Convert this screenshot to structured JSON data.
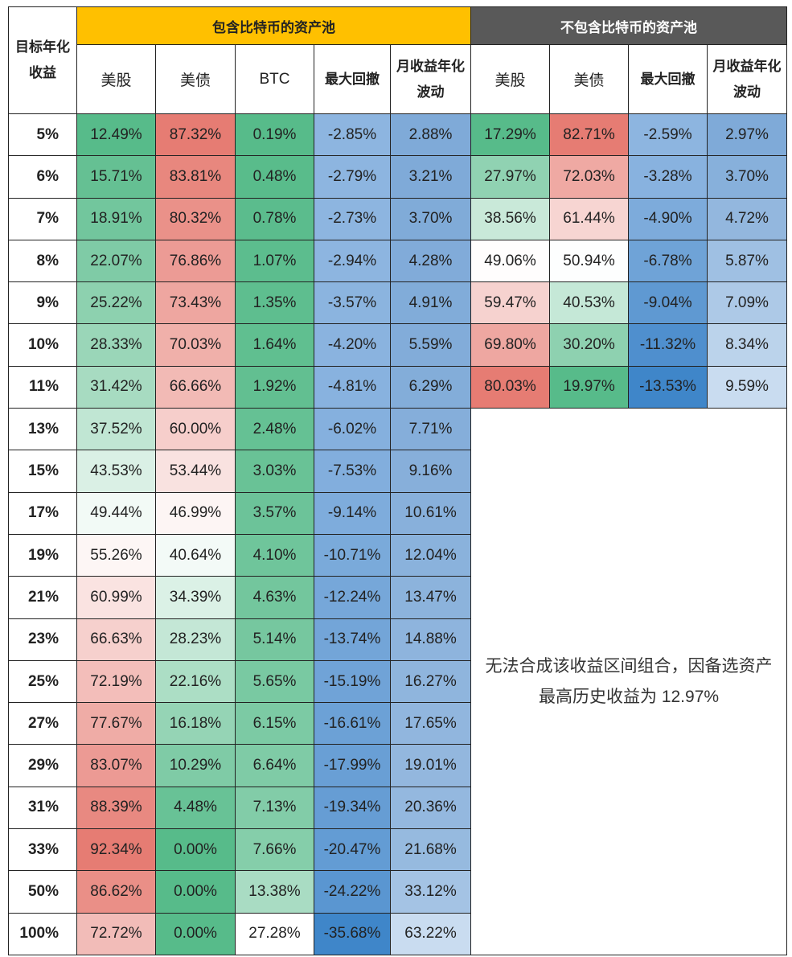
{
  "headers": {
    "target": "目标年化收益",
    "group_with_btc": "包含比特币的资产池",
    "group_without_btc": "不包含比特币的资产池",
    "with_cols": [
      "美股",
      "美债",
      "BTC",
      "最大回撤",
      "月收益年化波动"
    ],
    "without_cols": [
      "美股",
      "美债",
      "最大回撤",
      "月收益年化波动"
    ]
  },
  "colors": {
    "header_with": "#FFC000",
    "header_without": "#595959",
    "red": "#E67C73",
    "green": "#57BB8A",
    "blue": "#3F86C9"
  },
  "rows": [
    {
      "target": "5%",
      "w": [
        "12.49%",
        "87.32%",
        "0.19%",
        "-2.85%",
        "2.88%"
      ],
      "o": [
        "17.29%",
        "82.71%",
        "-2.59%",
        "2.97%"
      ]
    },
    {
      "target": "6%",
      "w": [
        "15.71%",
        "83.81%",
        "0.48%",
        "-2.79%",
        "3.21%"
      ],
      "o": [
        "27.97%",
        "72.03%",
        "-3.28%",
        "3.70%"
      ]
    },
    {
      "target": "7%",
      "w": [
        "18.91%",
        "80.32%",
        "0.78%",
        "-2.73%",
        "3.70%"
      ],
      "o": [
        "38.56%",
        "61.44%",
        "-4.90%",
        "4.72%"
      ]
    },
    {
      "target": "8%",
      "w": [
        "22.07%",
        "76.86%",
        "1.07%",
        "-2.94%",
        "4.28%"
      ],
      "o": [
        "49.06%",
        "50.94%",
        "-6.78%",
        "5.87%"
      ]
    },
    {
      "target": "9%",
      "w": [
        "25.22%",
        "73.43%",
        "1.35%",
        "-3.57%",
        "4.91%"
      ],
      "o": [
        "59.47%",
        "40.53%",
        "-9.04%",
        "7.09%"
      ]
    },
    {
      "target": "10%",
      "w": [
        "28.33%",
        "70.03%",
        "1.64%",
        "-4.20%",
        "5.59%"
      ],
      "o": [
        "69.80%",
        "30.20%",
        "-11.32%",
        "8.34%"
      ]
    },
    {
      "target": "11%",
      "w": [
        "31.42%",
        "66.66%",
        "1.92%",
        "-4.81%",
        "6.29%"
      ],
      "o": [
        "80.03%",
        "19.97%",
        "-13.53%",
        "9.59%"
      ]
    },
    {
      "target": "13%",
      "w": [
        "37.52%",
        "60.00%",
        "2.48%",
        "-6.02%",
        "7.71%"
      ]
    },
    {
      "target": "15%",
      "w": [
        "43.53%",
        "53.44%",
        "3.03%",
        "-7.53%",
        "9.16%"
      ]
    },
    {
      "target": "17%",
      "w": [
        "49.44%",
        "46.99%",
        "3.57%",
        "-9.14%",
        "10.61%"
      ]
    },
    {
      "target": "19%",
      "w": [
        "55.26%",
        "40.64%",
        "4.10%",
        "-10.71%",
        "12.04%"
      ]
    },
    {
      "target": "21%",
      "w": [
        "60.99%",
        "34.39%",
        "4.63%",
        "-12.24%",
        "13.47%"
      ]
    },
    {
      "target": "23%",
      "w": [
        "66.63%",
        "28.23%",
        "5.14%",
        "-13.74%",
        "14.88%"
      ]
    },
    {
      "target": "25%",
      "w": [
        "72.19%",
        "22.16%",
        "5.65%",
        "-15.19%",
        "16.27%"
      ]
    },
    {
      "target": "27%",
      "w": [
        "77.67%",
        "16.18%",
        "6.15%",
        "-16.61%",
        "17.65%"
      ]
    },
    {
      "target": "29%",
      "w": [
        "83.07%",
        "10.29%",
        "6.64%",
        "-17.99%",
        "19.01%"
      ]
    },
    {
      "target": "31%",
      "w": [
        "88.39%",
        "4.48%",
        "7.13%",
        "-19.34%",
        "20.36%"
      ]
    },
    {
      "target": "33%",
      "w": [
        "92.34%",
        "0.00%",
        "7.66%",
        "-20.47%",
        "21.68%"
      ]
    },
    {
      "target": "50%",
      "w": [
        "86.62%",
        "0.00%",
        "13.38%",
        "-24.22%",
        "33.12%"
      ]
    },
    {
      "target": "100%",
      "w": [
        "72.72%",
        "0.00%",
        "27.28%",
        "-35.68%",
        "63.22%"
      ]
    }
  ],
  "note": "无法合成该收益区间组合，因备选资产最高历史收益为 12.97%"
}
